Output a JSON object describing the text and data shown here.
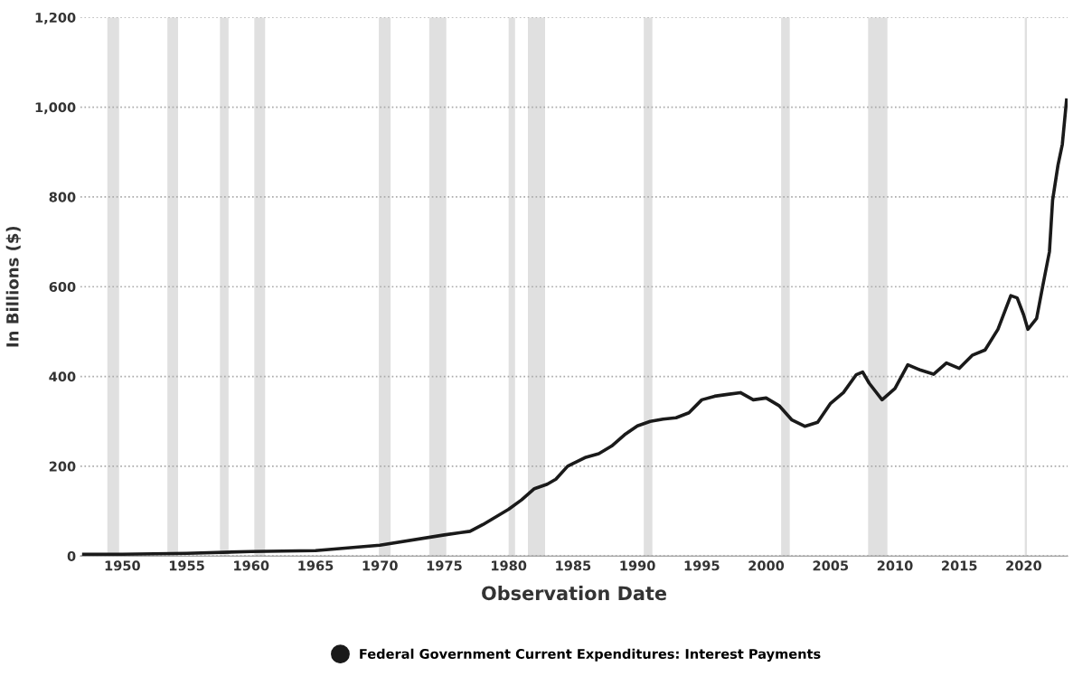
{
  "chart_data": {
    "type": "line",
    "xlabel": "Observation Date",
    "ylabel": "In Billions ($)",
    "x": [
      "1947-01",
      "1950-01",
      "1955-01",
      "1960-01",
      "1965-01",
      "1970-01",
      "1975-01",
      "1977-01",
      "1978-01",
      "1980-01",
      "1981-01",
      "1982-01",
      "1983-01",
      "1983-09",
      "1984-08",
      "1985-01",
      "1986-01",
      "1987-01",
      "1988-01",
      "1989-01",
      "1990-01",
      "1991-01",
      "1992-01",
      "1993-01",
      "1994-01",
      "1995-01",
      "1996-01",
      "1997-01",
      "1998-01",
      "1999-01",
      "2000-01",
      "2001-01",
      "2002-01",
      "2003-01",
      "2004-01",
      "2005-01",
      "2006-01",
      "2007-01",
      "2007-07",
      "2008-01",
      "2009-01",
      "2010-01",
      "2011-01",
      "2012-01",
      "2013-01",
      "2014-01",
      "2015-01",
      "2016-01",
      "2017-01",
      "2018-01",
      "2019-01",
      "2019-07",
      "2020-01",
      "2020-05",
      "2021-01",
      "2021-07",
      "2022-01",
      "2022-04",
      "2022-09",
      "2023-01",
      "2023-05"
    ],
    "series": [
      {
        "name": "Federal Government Current Expenditures: Interest Payments",
        "color": "#1a1a1a",
        "values": [
          4,
          4,
          6,
          10,
          12,
          24,
          47,
          55,
          70,
          104,
          125,
          150,
          160,
          171,
          200,
          206,
          220,
          228,
          245,
          270,
          290,
          300,
          305,
          308,
          319,
          348,
          356,
          360,
          364,
          348,
          352,
          335,
          303,
          289,
          298,
          340,
          364,
          404,
          410,
          385,
          348,
          373,
          426,
          414,
          405,
          430,
          418,
          447,
          459,
          505,
          580,
          575,
          537,
          505,
          529,
          604,
          678,
          793,
          871,
          917,
          1016
        ]
      }
    ],
    "xlim": [
      "1946-10",
      "2023-06"
    ],
    "xticks": [
      {
        "value": "1950",
        "label": "1950"
      },
      {
        "value": "1955",
        "label": "1955"
      },
      {
        "value": "1960",
        "label": "1960"
      },
      {
        "value": "1965",
        "label": "1965"
      },
      {
        "value": "1970",
        "label": "1970"
      },
      {
        "value": "1975",
        "label": "1975"
      },
      {
        "value": "1980",
        "label": "1980"
      },
      {
        "value": "1985",
        "label": "1985"
      },
      {
        "value": "1990",
        "label": "1990"
      },
      {
        "value": "1995",
        "label": "1995"
      },
      {
        "value": "2000",
        "label": "2000"
      },
      {
        "value": "2005",
        "label": "2005"
      },
      {
        "value": "2010",
        "label": "2010"
      },
      {
        "value": "2015",
        "label": "2015"
      },
      {
        "value": "2020",
        "label": "2020"
      }
    ],
    "ylim": [
      0,
      1200
    ],
    "yticks": [
      0,
      200,
      400,
      600,
      800,
      {
        "value": 1000,
        "label": "1,000"
      },
      {
        "value": 1200,
        "label": "1,200"
      }
    ],
    "bands": [
      {
        "axis": "x",
        "from": "1948-11",
        "to": "1949-10",
        "color": "#e0e0e0"
      },
      {
        "axis": "x",
        "from": "1953-07",
        "to": "1954-05",
        "color": "#e0e0e0"
      },
      {
        "axis": "x",
        "from": "1957-08",
        "to": "1958-04",
        "color": "#e0e0e0"
      },
      {
        "axis": "x",
        "from": "1960-04",
        "to": "1961-02",
        "color": "#e0e0e0"
      },
      {
        "axis": "x",
        "from": "1969-12",
        "to": "1970-11",
        "color": "#e0e0e0"
      },
      {
        "axis": "x",
        "from": "1973-11",
        "to": "1975-03",
        "color": "#e0e0e0"
      },
      {
        "axis": "x",
        "from": "1980-01",
        "to": "1980-07",
        "color": "#e0e0e0"
      },
      {
        "axis": "x",
        "from": "1981-07",
        "to": "1982-11",
        "color": "#e0e0e0"
      },
      {
        "axis": "x",
        "from": "1990-07",
        "to": "1991-03",
        "color": "#e0e0e0"
      },
      {
        "axis": "x",
        "from": "2001-03",
        "to": "2001-11",
        "color": "#e0e0e0"
      },
      {
        "axis": "x",
        "from": "2007-12",
        "to": "2009-06",
        "color": "#e0e0e0"
      },
      {
        "axis": "x",
        "from": "2020-02",
        "to": "2020-04",
        "color": "#e0e0e0"
      }
    ],
    "grid": "y",
    "legend": "bottom",
    "marker": "none",
    "line_style": "solid"
  }
}
